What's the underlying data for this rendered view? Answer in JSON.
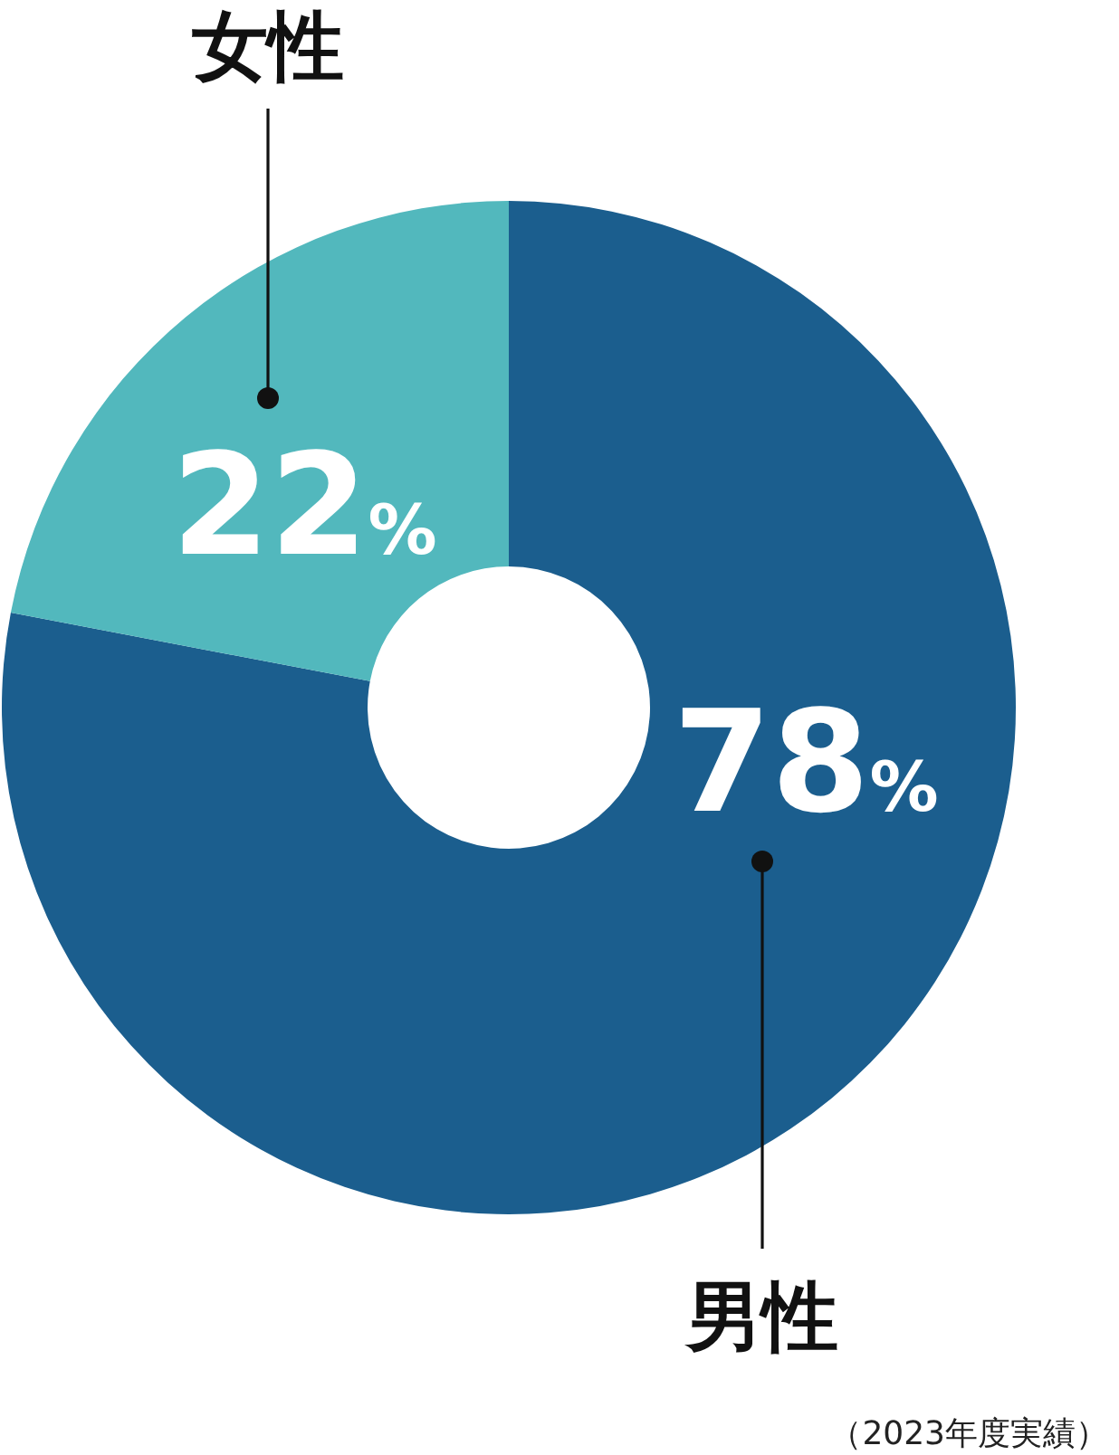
{
  "chart_data": {
    "type": "donut",
    "categories": [
      "男性",
      "女性"
    ],
    "values": [
      78,
      22
    ],
    "colors": [
      "#1b5e8e",
      "#52b8bd"
    ],
    "value_labels": [
      "78%",
      "22%"
    ],
    "annotations": [
      "（2023年度実績）"
    ]
  }
}
